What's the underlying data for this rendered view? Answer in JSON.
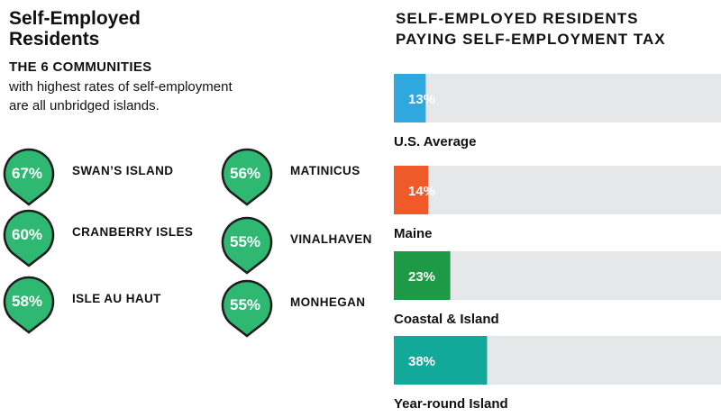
{
  "left": {
    "title_line1": "Self-Employed",
    "title_line2": "Residents",
    "subhead": "THE 6 COMMUNITIES",
    "subtext_line1": "with highest rates of self-employment",
    "subtext_line2": "are all unbridged islands.",
    "pin_color": "#2eb872",
    "communities": [
      {
        "pct": "67%",
        "name": "SWAN’S ISLAND"
      },
      {
        "pct": "60%",
        "name": "CRANBERRY ISLES"
      },
      {
        "pct": "58%",
        "name": "ISLE AU HAUT"
      },
      {
        "pct": "56%",
        "name": "MATINICUS"
      },
      {
        "pct": "55%",
        "name": "VINALHAVEN"
      },
      {
        "pct": "55%",
        "name": "MONHEGAN"
      }
    ]
  },
  "chart_data": {
    "type": "bar",
    "title_line1": "SELF-EMPLOYED RESIDENTS",
    "title_line2": "PAYING SELF-EMPLOYMENT TAX",
    "categories": [
      "U.S. Average",
      "Maine",
      "Coastal & Island",
      "Year-round Island"
    ],
    "values": [
      13,
      14,
      23,
      38
    ],
    "value_labels": [
      "13%",
      "14%",
      "23%",
      "38%"
    ],
    "colors": [
      "#2fa8e0",
      "#f05a28",
      "#1e9a46",
      "#12a89a"
    ],
    "track_color": "#e6e7e8",
    "xlim": [
      0,
      100
    ],
    "orientation": "horizontal"
  }
}
